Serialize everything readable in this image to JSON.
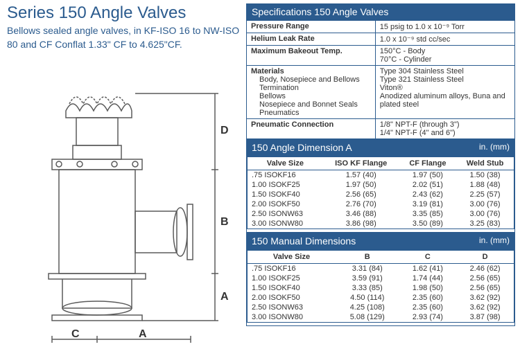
{
  "page": {
    "title": "Series 150 Angle Valves",
    "subtitle": "Bellows sealed angle valves, in KF-ISO 16 to NW-ISO 80 and CF Conflat 1.33\" CF to 4.625\"CF."
  },
  "diagram": {
    "stroke": "#5a5a5a",
    "dim_labels": {
      "A_bottom": "A",
      "A_side": "A",
      "B": "B",
      "C": "C",
      "D": "D"
    }
  },
  "specs": {
    "header": "Specifications 150 Angle Valves",
    "rows": [
      {
        "label": "Pressure Range",
        "value": "15 psig to 1.0 x 10⁻⁹ Torr"
      },
      {
        "label": "Helium Leak Rate",
        "value": "1.0 x 10⁻⁹ std cc/sec"
      },
      {
        "label": "Maximum Bakeout Temp.",
        "value": "150°C - Body\n70°C - Cylinder"
      }
    ],
    "materials_label": "Materials",
    "materials": [
      {
        "sub": "Body, Nosepiece and Bellows Termination",
        "value": "Type 304 Stainless Steel"
      },
      {
        "sub": "Bellows",
        "value": "Type 321 Stainless Steel"
      },
      {
        "sub": "Nosepiece and Bonnet Seals",
        "value": "Viton®"
      },
      {
        "sub": "Pneumatics",
        "value": "Anodized aluminum alloys, Buna and plated steel"
      }
    ],
    "pneumatic": {
      "label": "Pneumatic Connection",
      "value": "1/8\" NPT-F (through 3\")\n1/4\" NPT-F (4\" and 6\")"
    }
  },
  "dimA": {
    "header": "150 Angle Dimension A",
    "units": "in. (mm)",
    "columns": [
      "Valve Size",
      "ISO KF Flange",
      "CF Flange",
      "Weld Stub"
    ],
    "rows": [
      [
        ".75 ISOKF16",
        "1.57 (40)",
        "1.97 (50)",
        "1.50 (38)"
      ],
      [
        "1.00 ISOKF25",
        "1.97 (50)",
        "2.02 (51)",
        "1.88 (48)"
      ],
      [
        "1.50 ISOKF40",
        "2.56 (65)",
        "2.43 (62)",
        "2.25 (57)"
      ],
      [
        "2.00 ISOKF50",
        "2.76 (70)",
        "3.19 (81)",
        "3.00 (76)"
      ],
      [
        "2.50 ISONW63",
        "3.46 (88)",
        "3.35 (85)",
        "3.00 (76)"
      ],
      [
        "3.00 ISONW80",
        "3.86 (98)",
        "3.50 (89)",
        "3.25 (83)"
      ]
    ]
  },
  "manual": {
    "header": "150 Manual Dimensions",
    "units": "in. (mm)",
    "columns": [
      "Valve Size",
      "B",
      "C",
      "D"
    ],
    "rows": [
      [
        ".75 ISOKF16",
        "3.31 (84)",
        "1.62 (41)",
        "2.46 (62)"
      ],
      [
        "1.00 ISOKF25",
        "3.59 (91)",
        "1.74 (44)",
        "2.56 (65)"
      ],
      [
        "1.50 ISOKF40",
        "3.33 (85)",
        "1.98 (50)",
        "2.56 (65)"
      ],
      [
        "2.00 ISOKF50",
        "4.50 (114)",
        "2.35 (60)",
        "3.62 (92)"
      ],
      [
        "2.50 ISONW63",
        "4.25 (108)",
        "2.35 (60)",
        "3.62 (92)"
      ],
      [
        "3.00 ISONW80",
        "5.08 (129)",
        "2.93 (74)",
        "3.87 (98)"
      ]
    ]
  },
  "colors": {
    "brand": "#2b5b8e",
    "border": "#2b5b8e",
    "text": "#333333",
    "bg": "#ffffff"
  }
}
